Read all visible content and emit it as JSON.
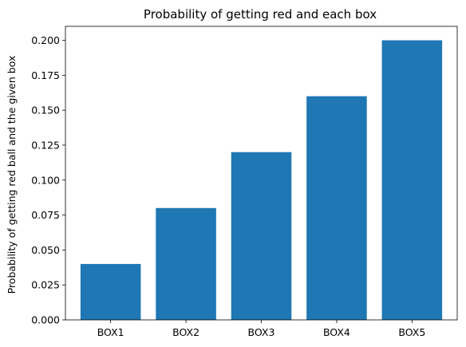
{
  "chart_data": {
    "type": "bar",
    "title": "Probability of getting red and each box",
    "xlabel": "",
    "ylabel": "Probability of getting red ball and the given box",
    "categories": [
      "BOX1",
      "BOX2",
      "BOX3",
      "BOX4",
      "BOX5"
    ],
    "values": [
      0.04,
      0.08,
      0.12,
      0.16,
      0.2
    ],
    "ylim": [
      0,
      0.21
    ],
    "yticks": [
      0.0,
      0.025,
      0.05,
      0.075,
      0.1,
      0.125,
      0.15,
      0.175,
      0.2
    ],
    "ytick_labels": [
      "0.000",
      "0.025",
      "0.050",
      "0.075",
      "0.100",
      "0.125",
      "0.150",
      "0.175",
      "0.200"
    ],
    "grid": false,
    "legend": "none",
    "bar_color": "#1f77b4"
  }
}
